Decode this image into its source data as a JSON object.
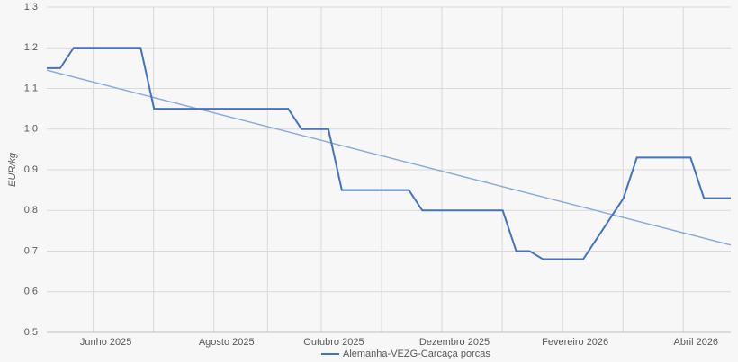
{
  "chart_data": {
    "type": "line",
    "y_label": "EUR/kg",
    "categories": [
      null,
      null,
      null,
      null,
      "Junho 2025",
      null,
      null,
      null,
      null,
      null,
      null,
      null,
      null,
      "Agosto 2025",
      null,
      null,
      null,
      null,
      null,
      null,
      null,
      "Outubro 2025",
      null,
      null,
      null,
      null,
      null,
      null,
      null,
      null,
      "Dezembro 2025",
      null,
      null,
      null,
      null,
      null,
      null,
      null,
      null,
      "Fevereiro 2026",
      null,
      null,
      null,
      null,
      null,
      null,
      null,
      null,
      "Abril 2026",
      null,
      null,
      null
    ],
    "series": [
      {
        "name": "Alemanha-VEZG-Carcaça porcas",
        "color": "#4472c4",
        "values": [
          1.15,
          1.15,
          1.2,
          1.2,
          1.2,
          1.2,
          1.2,
          1.2,
          1.05,
          1.05,
          1.05,
          1.05,
          1.05,
          1.05,
          1.05,
          1.05,
          1.05,
          1.05,
          1.05,
          1.0,
          1.0,
          1.0,
          0.85,
          0.85,
          0.85,
          0.85,
          0.85,
          0.85,
          0.8,
          0.8,
          0.8,
          0.8,
          0.8,
          0.8,
          0.8,
          0.7,
          0.7,
          0.68,
          0.68,
          0.68,
          0.68,
          0.73,
          0.78,
          0.83,
          0.93,
          0.93,
          0.93,
          0.93,
          0.93,
          0.83,
          0.83,
          0.83
        ]
      }
    ],
    "trendline": {
      "color": "#8eaadb",
      "values": [
        1.145,
        0.715
      ]
    },
    "ylim": [
      0.5,
      1.3
    ],
    "yticks": [
      0.5,
      0.6,
      0.7,
      0.8,
      0.9,
      {
        "value": 1,
        "label": "1.0"
      },
      1.1,
      1.2,
      1.3
    ],
    "grid": true,
    "legend": "bottom"
  }
}
